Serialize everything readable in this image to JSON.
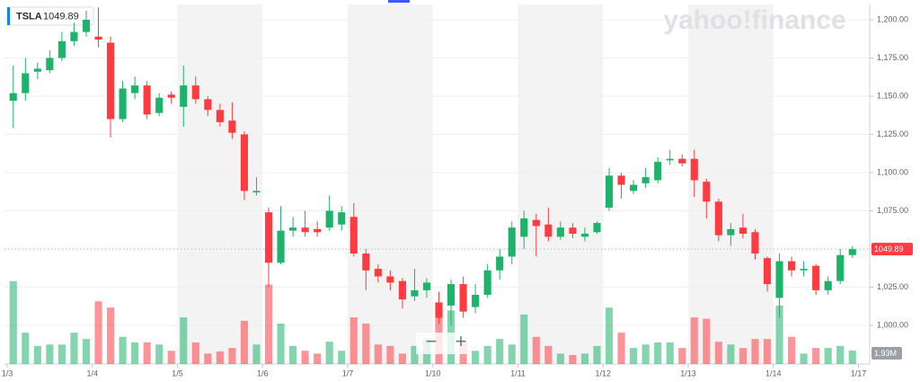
{
  "chart_data": {
    "type": "candlestick",
    "symbol": "TSLA",
    "watermark": "yahoo!finance",
    "controls": [
      "−",
      "+"
    ],
    "up_color": "#1eb36b",
    "down_color": "#ff3b42",
    "xlim": [
      -0.72,
      70.2
    ],
    "xticks": [
      {
        "value": -0.5,
        "label": "1/3"
      },
      {
        "value": 6.5,
        "label": "1/4"
      },
      {
        "value": 13.5,
        "label": "1/5"
      },
      {
        "value": 20.5,
        "label": "1/6"
      },
      {
        "value": 27.5,
        "label": "1/7"
      },
      {
        "value": 34.5,
        "label": "1/10"
      },
      {
        "value": 41.5,
        "label": "1/11"
      },
      {
        "value": 48.5,
        "label": "1/12"
      },
      {
        "value": 55.5,
        "label": "1/13"
      },
      {
        "value": 62.5,
        "label": "1/14"
      },
      {
        "value": 69.5,
        "label": "1/17"
      }
    ],
    "ylim": [
      974.7,
      1210
    ],
    "yticks": [
      {
        "value": 1000,
        "label": "1,000.00"
      },
      {
        "value": 1025,
        "label": "1,025.00"
      },
      {
        "value": 1050,
        "label": "1,050.00"
      },
      {
        "value": 1075,
        "label": "1,075.00"
      },
      {
        "value": 1100,
        "label": "1,100.00"
      },
      {
        "value": 1125,
        "label": "1,125.00"
      },
      {
        "value": 1150,
        "label": "1,150.00"
      },
      {
        "value": 1175,
        "label": "1,175.00"
      },
      {
        "value": 1200,
        "label": "1,200.00"
      }
    ],
    "volume_ylim": [
      0,
      51.6
    ],
    "volume_last_label": "1.93M",
    "open": [
      1147,
      1152,
      1166,
      1167,
      1175,
      1186,
      1192,
      1189,
      1185,
      1135,
      1152,
      1157,
      1139,
      1151,
      1143,
      1157,
      1148,
      1141,
      1134,
      1125,
      1087,
      1074,
      1041,
      1062,
      1064,
      1063,
      1064,
      1066,
      1071,
      1047,
      1037,
      1032,
      1029,
      1019,
      1023,
      1015,
      1013,
      1027,
      1012,
      1020,
      1036,
      1045,
      1058,
      1069,
      1066,
      1058,
      1064,
      1058,
      1061,
      1077,
      1098,
      1088,
      1093,
      1095,
      1108,
      1109,
      1109,
      1094,
      1081,
      1059,
      1064,
      1061,
      1044,
      1018,
      1042,
      1036,
      1039,
      1023,
      1029,
      1046
    ],
    "high": [
      1170,
      1175,
      1172,
      1180,
      1192,
      1198,
      1206,
      1208,
      1189,
      1160,
      1163,
      1160,
      1152,
      1153,
      1170,
      1163,
      1150,
      1145,
      1146,
      1127,
      1097,
      1077,
      1078,
      1071,
      1075,
      1068,
      1085,
      1078,
      1080,
      1050,
      1040,
      1036,
      1031,
      1037,
      1031,
      1022,
      1030,
      1032,
      1027,
      1040,
      1050,
      1068,
      1075,
      1073,
      1077,
      1068,
      1067,
      1064,
      1068,
      1103,
      1100,
      1095,
      1103,
      1110,
      1115,
      1112,
      1115,
      1096,
      1083,
      1067,
      1073,
      1063,
      1045,
      1047,
      1045,
      1042,
      1040,
      1032,
      1050,
      1052
    ],
    "low": [
      1129,
      1147,
      1161,
      1165,
      1173,
      1183,
      1189,
      1182,
      1123,
      1133,
      1148,
      1135,
      1137,
      1145,
      1130,
      1145,
      1137,
      1130,
      1122,
      1082,
      1085,
      1025,
      1040,
      1058,
      1058,
      1058,
      1062,
      1062,
      1045,
      1023,
      1028,
      1023,
      1011,
      1016,
      1018,
      1001,
      1000,
      1005,
      1008,
      1018,
      1030,
      1040,
      1050,
      1045,
      1055,
      1056,
      1057,
      1055,
      1060,
      1075,
      1083,
      1086,
      1090,
      1093,
      1105,
      1104,
      1084,
      1070,
      1055,
      1052,
      1057,
      1043,
      1022,
      1005,
      1032,
      1032,
      1020,
      1020,
      1027,
      1044
    ],
    "close": [
      1152,
      1165,
      1168,
      1175,
      1186,
      1192,
      1200,
      1187,
      1135,
      1155,
      1157,
      1138,
      1149,
      1149,
      1157,
      1148,
      1141,
      1133,
      1126,
      1088,
      1088,
      1041,
      1062,
      1064,
      1061,
      1061,
      1075,
      1074,
      1047,
      1036,
      1032,
      1028,
      1017,
      1023,
      1028,
      1005,
      1027,
      1009,
      1020,
      1036,
      1045,
      1064,
      1070,
      1065,
      1058,
      1064,
      1060,
      1060,
      1067,
      1098,
      1092,
      1092,
      1097,
      1107,
      1109,
      1106,
      1095,
      1081,
      1059,
      1063,
      1060,
      1047,
      1027,
      1042,
      1036,
      1037,
      1023,
      1029,
      1046,
      1049.89
    ],
    "volume": [
      11.9,
      4.5,
      2.6,
      2.8,
      2.8,
      4.5,
      3.6,
      9.0,
      8.1,
      3.9,
      3.1,
      3.1,
      2.8,
      1.9,
      6.7,
      3.1,
      1.5,
      1.8,
      2.3,
      6.2,
      2.8,
      11.4,
      5.8,
      2.6,
      1.9,
      1.5,
      3.2,
      1.9,
      6.7,
      5.8,
      2.8,
      2.6,
      1.5,
      2.6,
      3.6,
      7.7,
      7.7,
      3.2,
      1.9,
      2.6,
      3.6,
      2.8,
      7.1,
      3.9,
      2.6,
      1.5,
      1.3,
      1.5,
      2.6,
      8.1,
      4.5,
      2.3,
      2.8,
      3.1,
      3.1,
      2.3,
      6.7,
      6.5,
      3.2,
      2.8,
      2.3,
      3.6,
      3.6,
      8.4,
      3.9,
      1.5,
      2.3,
      2.3,
      2.6,
      1.93
    ]
  }
}
